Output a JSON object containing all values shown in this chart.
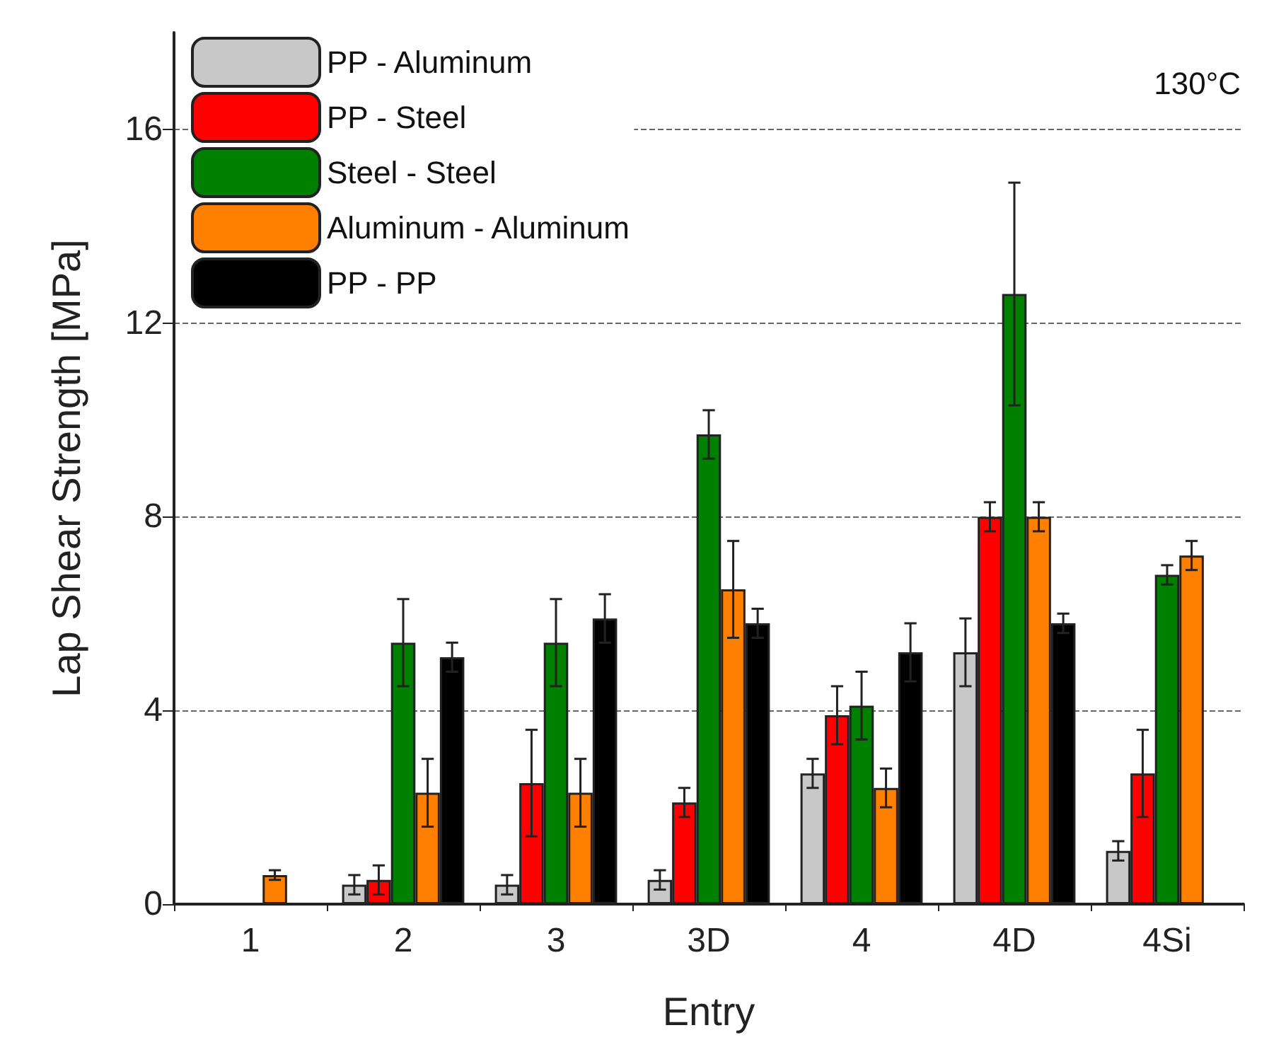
{
  "chart_data": {
    "type": "bar",
    "xlabel": "Entry",
    "ylabel": "Lap Shear Strength [MPa]",
    "categories": [
      "1",
      "2",
      "3",
      "3D",
      "4",
      "4D",
      "4Si"
    ],
    "series": [
      {
        "name": "PP - Aluminum",
        "color": "#c8c8c8",
        "values": [
          null,
          0.4,
          0.4,
          0.5,
          2.7,
          5.2,
          1.1
        ],
        "errors": [
          null,
          0.2,
          0.2,
          0.2,
          0.3,
          0.7,
          0.2
        ]
      },
      {
        "name": "PP - Steel",
        "color": "#ff0000",
        "values": [
          null,
          0.5,
          2.5,
          2.1,
          3.9,
          8.0,
          2.7
        ],
        "errors": [
          null,
          0.3,
          1.1,
          0.3,
          0.6,
          0.3,
          0.9
        ]
      },
      {
        "name": "Steel - Steel",
        "color": "#008000",
        "values": [
          null,
          5.4,
          5.4,
          9.7,
          4.1,
          12.6,
          6.8
        ],
        "errors": [
          null,
          0.9,
          0.9,
          0.5,
          0.7,
          2.3,
          0.2
        ]
      },
      {
        "name": "Aluminum - Aluminum",
        "color": "#ff8000",
        "values": [
          0.6,
          2.3,
          2.3,
          6.5,
          2.4,
          8.0,
          7.2
        ],
        "errors": [
          0.1,
          0.7,
          0.7,
          1.0,
          0.4,
          0.3,
          0.3
        ]
      },
      {
        "name": "PP - PP",
        "color": "#000000",
        "values": [
          null,
          5.1,
          5.9,
          5.8,
          5.2,
          5.8,
          null
        ],
        "errors": [
          null,
          0.3,
          0.5,
          0.3,
          0.6,
          0.2,
          null
        ]
      }
    ],
    "ylim": [
      0,
      18
    ],
    "yticks": [
      0,
      4,
      8,
      12,
      16
    ],
    "grid": "y",
    "legend": "top left",
    "annotations": [
      "130°C"
    ]
  }
}
